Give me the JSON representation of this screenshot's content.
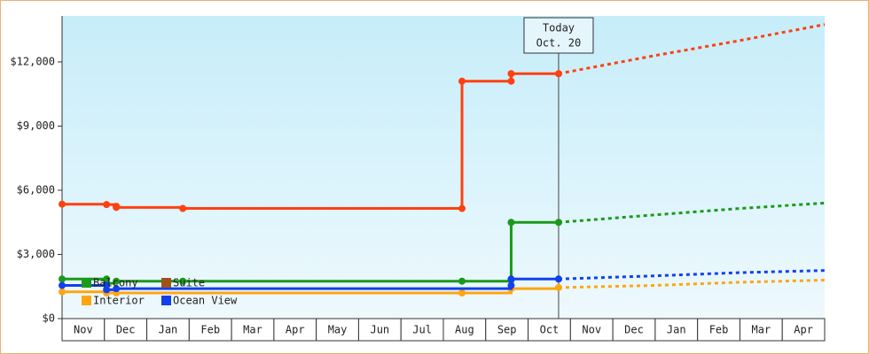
{
  "chart_data": {
    "type": "step-line",
    "categories": [
      "Nov",
      "Dec",
      "Jan",
      "Feb",
      "Mar",
      "Apr",
      "May",
      "Jun",
      "Jul",
      "Aug",
      "Sep",
      "Oct",
      "Nov",
      "Dec",
      "Jan",
      "Feb",
      "Mar",
      "Apr"
    ],
    "xlim": [
      0,
      18
    ],
    "ylim": [
      0,
      14150
    ],
    "yticks": [
      {
        "value": 0,
        "label": "$0"
      },
      {
        "value": 3000,
        "label": "$3,000"
      },
      {
        "value": 6000,
        "label": "$6,000"
      },
      {
        "value": 9000,
        "label": "$9,000"
      },
      {
        "value": 12000,
        "label": "$12,000"
      }
    ],
    "today": {
      "x": 11.72,
      "label": [
        "Today",
        "Oct. 20"
      ]
    },
    "series": [
      {
        "name": "Balcony",
        "color": "#1a9a1a",
        "x": [
          0,
          1.05,
          1.05,
          1.28,
          2.85,
          9.44,
          10.6,
          10.6,
          11.72
        ],
        "values": [
          1850,
          1850,
          1650,
          1750,
          1750,
          1750,
          1800,
          4500,
          4500
        ],
        "forecast_x": [
          11.72,
          14,
          16,
          18
        ],
        "forecast_values": [
          4500,
          4850,
          5150,
          5400
        ]
      },
      {
        "name": "Suite",
        "color": "#ff4010",
        "legend_color": "#a0521a",
        "x": [
          0,
          1.05,
          1.28,
          1.28,
          2.85,
          9.44,
          9.44,
          10.6,
          10.6,
          11.72
        ],
        "values": [
          5350,
          5330,
          5250,
          5200,
          5150,
          5150,
          11100,
          11100,
          11450,
          11450
        ],
        "forecast_x": [
          11.72,
          14,
          16,
          18
        ],
        "forecast_values": [
          11450,
          12300,
          13000,
          13750
        ]
      },
      {
        "name": "Interior",
        "color": "#ffa510",
        "x": [
          0,
          1.05,
          1.28,
          9.44,
          10.6,
          11.72
        ],
        "values": [
          1250,
          1200,
          1200,
          1200,
          1400,
          1450
        ],
        "forecast_x": [
          11.72,
          14,
          16,
          18
        ],
        "forecast_values": [
          1450,
          1550,
          1700,
          1800
        ]
      },
      {
        "name": "Ocean View",
        "color": "#1040f0",
        "x": [
          0,
          1.05,
          1.05,
          1.28,
          10.6,
          10.6,
          11.72
        ],
        "values": [
          1550,
          1550,
          1350,
          1400,
          1550,
          1850,
          1850
        ],
        "forecast_x": [
          11.72,
          14,
          16,
          18
        ],
        "forecast_values": [
          1850,
          2000,
          2150,
          2250
        ]
      }
    ]
  }
}
